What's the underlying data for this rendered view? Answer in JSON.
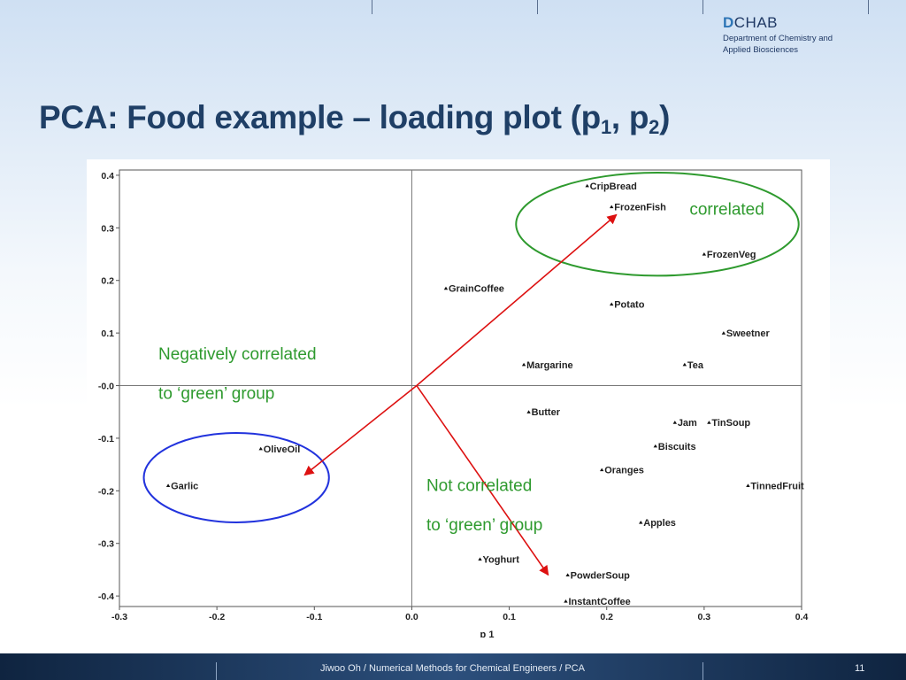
{
  "header": {
    "logo_d": "D",
    "logo_rest": "CHAB",
    "logo_line1": "Department of Chemistry and",
    "logo_line2": "Applied Biosciences"
  },
  "slide": {
    "title_main": "PCA: Food example – loading plot (p",
    "sub1": "1",
    "title_mid": ", p",
    "sub2": "2",
    "title_end": ")"
  },
  "footer": {
    "text": "Jiwoo Oh / Numerical Methods for Chemical Engineers / PCA",
    "page": "11"
  },
  "chart_data": {
    "type": "scatter",
    "xlabel": "p 1",
    "xlim": [
      -0.3,
      0.4
    ],
    "ylim": [
      -0.42,
      0.41
    ],
    "xticks": [
      -0.3,
      -0.2,
      -0.1,
      0.0,
      0.1,
      0.2,
      0.3,
      0.4
    ],
    "xtick_labels": [
      "-0.3",
      "-0.2",
      "-0.1",
      "0.0",
      "0.1",
      "0.2",
      "0.3",
      "0.4"
    ],
    "yticks": [
      0.4,
      0.3,
      0.2,
      0.1,
      0.0,
      -0.1,
      -0.2,
      -0.3,
      -0.4
    ],
    "ytick_labels": [
      "0.4",
      "0.3",
      "0.2",
      "0.1",
      "-0.0",
      "-0.1",
      "-0.2",
      "-0.3",
      "-0.4"
    ],
    "points": [
      {
        "label": "CripBread",
        "x": 0.18,
        "y": 0.38
      },
      {
        "label": "FrozenFish",
        "x": 0.205,
        "y": 0.34
      },
      {
        "label": "FrozenVeg",
        "x": 0.3,
        "y": 0.25
      },
      {
        "label": "GrainCoffee",
        "x": 0.035,
        "y": 0.185
      },
      {
        "label": "Potato",
        "x": 0.205,
        "y": 0.155
      },
      {
        "label": "Sweetner",
        "x": 0.32,
        "y": 0.1
      },
      {
        "label": "Margarine",
        "x": 0.115,
        "y": 0.04
      },
      {
        "label": "Tea",
        "x": 0.28,
        "y": 0.04
      },
      {
        "label": "Butter",
        "x": 0.12,
        "y": -0.05
      },
      {
        "label": "Jam",
        "x": 0.27,
        "y": -0.07
      },
      {
        "label": "TinSoup",
        "x": 0.305,
        "y": -0.07
      },
      {
        "label": "Biscuits",
        "x": 0.25,
        "y": -0.115
      },
      {
        "label": "OliveOil",
        "x": -0.155,
        "y": -0.12
      },
      {
        "label": "Oranges",
        "x": 0.195,
        "y": -0.16
      },
      {
        "label": "Garlic",
        "x": -0.25,
        "y": -0.19
      },
      {
        "label": "TinnedFruit",
        "x": 0.345,
        "y": -0.19
      },
      {
        "label": "Apples",
        "x": 0.235,
        "y": -0.26
      },
      {
        "label": "Yoghurt",
        "x": 0.07,
        "y": -0.33
      },
      {
        "label": "PowderSoup",
        "x": 0.16,
        "y": -0.36
      },
      {
        "label": "InstantCoffee",
        "x": 0.158,
        "y": -0.41
      }
    ],
    "annotations": {
      "correlated": "correlated",
      "neg_line1": "Negatively correlated",
      "neg_line2": "to ‘green’ group",
      "not_line1": "Not correlated",
      "not_line2": "to ‘green’ group"
    },
    "ellipses": [
      {
        "name": "green-ellipse",
        "color": "#2e9a2e",
        "cx": 0.252,
        "cy": 0.307,
        "rx": 0.145,
        "ry": 0.098
      },
      {
        "name": "blue-ellipse",
        "color": "#2233dd",
        "cx": -0.18,
        "cy": -0.175,
        "rx": 0.095,
        "ry": 0.085
      }
    ],
    "arrows": [
      {
        "name": "arrow-to-frozenfish",
        "color": "#dd1111",
        "from": [
          0.005,
          0.0
        ],
        "to": [
          0.21,
          0.325
        ]
      },
      {
        "name": "arrow-to-garlic-group",
        "color": "#dd1111",
        "from": [
          0.005,
          0.0
        ],
        "to": [
          -0.11,
          -0.17
        ]
      },
      {
        "name": "arrow-to-powdersoup",
        "color": "#dd1111",
        "from": [
          0.005,
          0.0
        ],
        "to": [
          0.14,
          -0.36
        ]
      }
    ],
    "colors": {
      "green_text": "#2e9a2e",
      "axis": "#555555",
      "grid": "#777777",
      "label": "#222222"
    }
  }
}
